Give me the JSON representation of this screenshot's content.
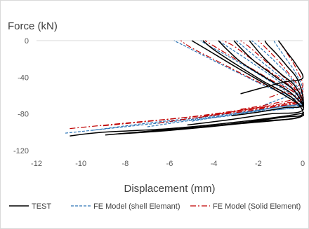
{
  "chart_data": {
    "type": "line",
    "title": "",
    "xlabel": "Displacement (mm)",
    "ylabel": "Force (kN)",
    "xlim": [
      -12,
      0
    ],
    "ylim": [
      -120,
      0
    ],
    "xticks": [
      -12,
      -10,
      -8,
      -6,
      -4,
      -2,
      0
    ],
    "yticks": [
      0,
      -40,
      -80,
      -120
    ],
    "grid": false,
    "legend_position": "bottom",
    "series": [
      {
        "name": "TEST",
        "color": "#000000",
        "dash": "solid",
        "loops": [
          [
            [
              -10.5,
              -104
            ],
            [
              -9,
              -100
            ],
            [
              -6,
              -96
            ],
            [
              -3,
              -89
            ],
            [
              0,
              -79
            ],
            [
              -0.15,
              -70
            ],
            [
              -1.5,
              -50
            ],
            [
              -3,
              -29
            ],
            [
              -4.3,
              -10
            ],
            [
              -5,
              0
            ]
          ],
          [
            [
              -8.9,
              -103
            ],
            [
              -7,
              -99
            ],
            [
              -4,
              -93
            ],
            [
              -1,
              -84
            ],
            [
              0,
              -80
            ],
            [
              -0.5,
              -62
            ],
            [
              -1.8,
              -44
            ],
            [
              -3,
              -26
            ],
            [
              -4,
              -10
            ],
            [
              -4.5,
              0
            ]
          ],
          [
            [
              -8.4,
              -102
            ],
            [
              -6,
              -98
            ],
            [
              -3,
              -91
            ],
            [
              0,
              -82
            ],
            [
              -0.4,
              -60
            ],
            [
              -1.5,
              -43
            ],
            [
              -2.7,
              -25
            ],
            [
              -3.4,
              -10
            ],
            [
              -3.8,
              0
            ]
          ],
          [
            [
              -7.4,
              -100
            ],
            [
              -5,
              -95
            ],
            [
              -2,
              -88
            ],
            [
              0,
              -82
            ],
            [
              -0.3,
              -57
            ],
            [
              -1.2,
              -40
            ],
            [
              -2.2,
              -22
            ],
            [
              -2.8,
              -8
            ],
            [
              -3.1,
              0
            ]
          ],
          [
            [
              -5.2,
              -92
            ],
            [
              -3.5,
              -87
            ],
            [
              -1.5,
              -80
            ],
            [
              0,
              -76
            ],
            [
              -0.3,
              -51
            ],
            [
              -1,
              -36
            ],
            [
              -1.7,
              -20
            ],
            [
              -2.2,
              -6
            ],
            [
              -2.4,
              0
            ]
          ],
          [
            [
              -3.2,
              -82
            ],
            [
              -2,
              -78
            ],
            [
              -0.8,
              -73
            ],
            [
              0,
              -70
            ],
            [
              -0.2,
              -44
            ],
            [
              -0.7,
              -28
            ],
            [
              -1.2,
              -14
            ],
            [
              -1.6,
              -4
            ],
            [
              -1.7,
              0
            ]
          ],
          [
            [
              -2.8,
              -58
            ],
            [
              -1.6,
              -50
            ],
            [
              -0.8,
              -45
            ],
            [
              0,
              -41
            ],
            [
              -0.3,
              -26
            ],
            [
              -0.7,
              -13
            ],
            [
              -1,
              -3
            ],
            [
              -1.1,
              0
            ]
          ]
        ]
      },
      {
        "name": "FE Model (shell Elemant)",
        "color": "#2e75b6",
        "dash": "dashed",
        "loops": [
          [
            [
              -10.7,
              -101
            ],
            [
              -8,
              -94
            ],
            [
              -5,
              -86
            ],
            [
              -2,
              -77
            ],
            [
              0,
              -70
            ],
            [
              -2,
              -46
            ],
            [
              -4,
              -22
            ],
            [
              -5.3,
              -6
            ],
            [
              -5.8,
              0
            ]
          ],
          [
            [
              -9.5,
              -98
            ],
            [
              -7,
              -90
            ],
            [
              -4,
              -82
            ],
            [
              -1,
              -72
            ],
            [
              0,
              -68
            ],
            [
              -1.5,
              -44
            ],
            [
              -3,
              -22
            ],
            [
              -4.2,
              -6
            ],
            [
              -4.6,
              0
            ]
          ],
          [
            [
              -7,
              -94
            ],
            [
              -5,
              -87
            ],
            [
              -2,
              -78
            ],
            [
              0,
              -69
            ],
            [
              -1,
              -46
            ],
            [
              -2.3,
              -24
            ],
            [
              -3.3,
              -8
            ],
            [
              -3.8,
              0
            ]
          ],
          [
            [
              -5,
              -88
            ],
            [
              -3,
              -80
            ],
            [
              -1,
              -72
            ],
            [
              0,
              -67
            ],
            [
              -0.8,
              -44
            ],
            [
              -1.8,
              -24
            ],
            [
              -2.6,
              -8
            ],
            [
              -3,
              0
            ]
          ],
          [
            [
              -3,
              -80
            ],
            [
              -1.5,
              -74
            ],
            [
              0,
              -66
            ],
            [
              -0.5,
              -42
            ],
            [
              -1.2,
              -24
            ],
            [
              -1.9,
              -8
            ],
            [
              -2.3,
              0
            ]
          ],
          [
            [
              -1.7,
              -70
            ],
            [
              -0.8,
              -62
            ],
            [
              0,
              -56
            ],
            [
              -0.3,
              -36
            ],
            [
              -0.8,
              -18
            ],
            [
              -1.2,
              -4
            ],
            [
              -1.3,
              0
            ]
          ]
        ]
      },
      {
        "name": "FE Model (Solid Element)",
        "color": "#c00000",
        "dash": "dashdot",
        "loops": [
          [
            [
              -10.5,
              -96
            ],
            [
              -8,
              -90
            ],
            [
              -5,
              -83
            ],
            [
              -2,
              -73
            ],
            [
              0,
              -66
            ],
            [
              -2,
              -45
            ],
            [
              -3.8,
              -23
            ],
            [
              -5,
              -8
            ],
            [
              -5.5,
              0
            ]
          ],
          [
            [
              -9,
              -93
            ],
            [
              -6.5,
              -87
            ],
            [
              -3.5,
              -79
            ],
            [
              -1,
              -70
            ],
            [
              0,
              -63
            ],
            [
              -1.5,
              -42
            ],
            [
              -2.9,
              -22
            ],
            [
              -4,
              -6
            ],
            [
              -4.4,
              0
            ]
          ],
          [
            [
              -6.5,
              -90
            ],
            [
              -4.5,
              -83
            ],
            [
              -2,
              -75
            ],
            [
              0,
              -64
            ],
            [
              -1,
              -42
            ],
            [
              -2.2,
              -22
            ],
            [
              -3.1,
              -6
            ],
            [
              -3.6,
              0
            ]
          ],
          [
            [
              -4.7,
              -84
            ],
            [
              -3,
              -77
            ],
            [
              -1,
              -69
            ],
            [
              0,
              -63
            ],
            [
              -0.8,
              -41
            ],
            [
              -1.7,
              -22
            ],
            [
              -2.4,
              -7
            ],
            [
              -2.8,
              0
            ]
          ],
          [
            [
              -2.8,
              -75
            ],
            [
              -1.4,
              -69
            ],
            [
              0,
              -60
            ],
            [
              -0.5,
              -40
            ],
            [
              -1.1,
              -22
            ],
            [
              -1.7,
              -7
            ],
            [
              -2,
              0
            ]
          ],
          [
            [
              -1.5,
              -62
            ],
            [
              -0.7,
              -55
            ],
            [
              0,
              -50
            ],
            [
              -0.3,
              -30
            ],
            [
              -0.7,
              -14
            ],
            [
              -1,
              -3
            ],
            [
              -1.1,
              0
            ]
          ]
        ]
      }
    ]
  }
}
